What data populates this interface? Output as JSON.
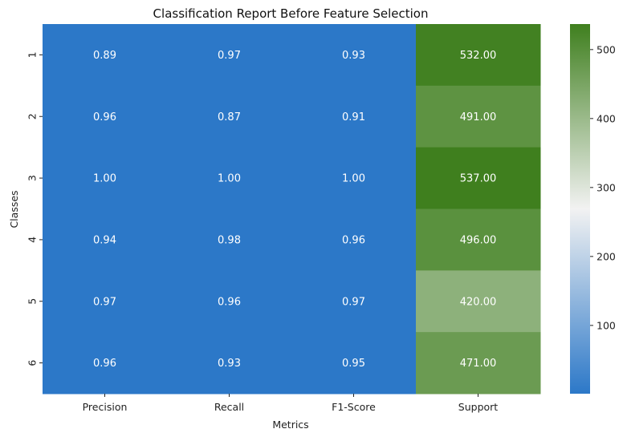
{
  "chart_data": {
    "type": "heatmap",
    "title": "Classification Report Before Feature Selection",
    "xlabel": "Metrics",
    "ylabel": "Classes",
    "x_categories": [
      "Precision",
      "Recall",
      "F1-Score",
      "Support"
    ],
    "y_categories": [
      "1",
      "2",
      "3",
      "4",
      "5",
      "6"
    ],
    "values": [
      [
        0.89,
        0.97,
        0.93,
        532.0
      ],
      [
        0.96,
        0.87,
        0.91,
        491.0
      ],
      [
        1.0,
        1.0,
        1.0,
        537.0
      ],
      [
        0.94,
        0.98,
        0.96,
        496.0
      ],
      [
        0.97,
        0.96,
        0.97,
        420.0
      ],
      [
        0.96,
        0.93,
        0.95,
        471.0
      ]
    ],
    "value_format": "0.00",
    "colorbar": {
      "range": [
        1,
        537
      ],
      "ticks": [
        "100",
        "200",
        "300",
        "400",
        "500"
      ],
      "tick_values": [
        100,
        200,
        300,
        400,
        500
      ],
      "colors": [
        "#2c78c8",
        "#f2f2f2",
        "#3f7f1e"
      ]
    },
    "grid": false,
    "legend": "colorbar-right"
  }
}
